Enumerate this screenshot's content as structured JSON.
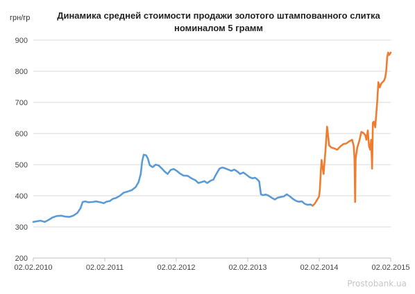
{
  "chart_data": {
    "type": "line",
    "title_line1": "Динамика средней стоимости продажи золотого штампованного слитка",
    "title_line2": "номиналом 5 грамм",
    "ylabel": "грн/гр",
    "xlabel": "",
    "ylim": [
      200,
      900
    ],
    "xlim": [
      "2010-02-02",
      "2015-02-02"
    ],
    "y_ticks": [
      200,
      300,
      400,
      500,
      600,
      700,
      800,
      900
    ],
    "x_tick_labels": [
      "02.02.2010",
      "02.02.2011",
      "02.02.2012",
      "02.02.2013",
      "02.02.2014",
      "02.02.2015"
    ],
    "grid": "horizontal",
    "legend": "none",
    "series": [
      {
        "color": "#5b9bd5",
        "points": [
          [
            "2010-02-02",
            316
          ],
          [
            "2010-02-20",
            318
          ],
          [
            "2010-03-10",
            320
          ],
          [
            "2010-04-01",
            316
          ],
          [
            "2010-04-20",
            322
          ],
          [
            "2010-05-10",
            330
          ],
          [
            "2010-06-01",
            335
          ],
          [
            "2010-06-25",
            336
          ],
          [
            "2010-07-15",
            333
          ],
          [
            "2010-08-05",
            332
          ],
          [
            "2010-08-25",
            336
          ],
          [
            "2010-09-15",
            345
          ],
          [
            "2010-10-01",
            360
          ],
          [
            "2010-10-12",
            380
          ],
          [
            "2010-10-25",
            382
          ],
          [
            "2010-11-10",
            379
          ],
          [
            "2010-12-01",
            380
          ],
          [
            "2010-12-20",
            382
          ],
          [
            "2011-01-10",
            379
          ],
          [
            "2011-01-28",
            376
          ],
          [
            "2011-02-10",
            381
          ],
          [
            "2011-02-28",
            383
          ],
          [
            "2011-03-15",
            390
          ],
          [
            "2011-04-01",
            393
          ],
          [
            "2011-04-20",
            400
          ],
          [
            "2011-05-10",
            410
          ],
          [
            "2011-06-01",
            414
          ],
          [
            "2011-06-20",
            418
          ],
          [
            "2011-07-10",
            428
          ],
          [
            "2011-07-25",
            444
          ],
          [
            "2011-08-05",
            470
          ],
          [
            "2011-08-12",
            510
          ],
          [
            "2011-08-20",
            532
          ],
          [
            "2011-09-01",
            530
          ],
          [
            "2011-09-10",
            520
          ],
          [
            "2011-09-20",
            498
          ],
          [
            "2011-10-05",
            492
          ],
          [
            "2011-10-20",
            500
          ],
          [
            "2011-11-05",
            497
          ],
          [
            "2011-11-20",
            488
          ],
          [
            "2011-12-05",
            478
          ],
          [
            "2011-12-20",
            470
          ],
          [
            "2012-01-05",
            483
          ],
          [
            "2012-01-20",
            486
          ],
          [
            "2012-02-05",
            480
          ],
          [
            "2012-02-20",
            472
          ],
          [
            "2012-03-10",
            465
          ],
          [
            "2012-04-01",
            464
          ],
          [
            "2012-04-20",
            456
          ],
          [
            "2012-05-10",
            450
          ],
          [
            "2012-05-25",
            441
          ],
          [
            "2012-06-10",
            444
          ],
          [
            "2012-06-25",
            447
          ],
          [
            "2012-07-10",
            441
          ],
          [
            "2012-07-25",
            448
          ],
          [
            "2012-08-10",
            452
          ],
          [
            "2012-08-25",
            470
          ],
          [
            "2012-09-10",
            487
          ],
          [
            "2012-09-25",
            491
          ],
          [
            "2012-10-10",
            488
          ],
          [
            "2012-10-25",
            484
          ],
          [
            "2012-11-10",
            480
          ],
          [
            "2012-11-25",
            484
          ],
          [
            "2012-12-10",
            478
          ],
          [
            "2012-12-25",
            470
          ],
          [
            "2013-01-10",
            475
          ],
          [
            "2013-01-25",
            468
          ],
          [
            "2013-02-10",
            460
          ],
          [
            "2013-02-25",
            456
          ],
          [
            "2013-03-10",
            458
          ],
          [
            "2013-03-20",
            454
          ],
          [
            "2013-04-01",
            446
          ],
          [
            "2013-04-10",
            405
          ],
          [
            "2013-04-20",
            402
          ],
          [
            "2013-05-05",
            404
          ],
          [
            "2013-05-20",
            400
          ],
          [
            "2013-06-05",
            393
          ],
          [
            "2013-06-20",
            388
          ],
          [
            "2013-07-05",
            394
          ],
          [
            "2013-07-20",
            396
          ],
          [
            "2013-08-05",
            398
          ],
          [
            "2013-08-20",
            405
          ],
          [
            "2013-09-05",
            398
          ],
          [
            "2013-09-20",
            390
          ],
          [
            "2013-10-05",
            384
          ],
          [
            "2013-10-20",
            381
          ],
          [
            "2013-11-05",
            382
          ],
          [
            "2013-11-20",
            374
          ],
          [
            "2013-12-05",
            371
          ],
          [
            "2013-12-20",
            372
          ],
          [
            "2013-12-30",
            368
          ]
        ]
      },
      {
        "color": "#ed7d31",
        "points": [
          [
            "2013-12-30",
            368
          ],
          [
            "2014-01-10",
            375
          ],
          [
            "2014-01-20",
            385
          ],
          [
            "2014-02-01",
            398
          ],
          [
            "2014-02-05",
            420
          ],
          [
            "2014-02-10",
            480
          ],
          [
            "2014-02-14",
            515
          ],
          [
            "2014-02-18",
            495
          ],
          [
            "2014-02-24",
            470
          ],
          [
            "2014-03-01",
            510
          ],
          [
            "2014-03-05",
            540
          ],
          [
            "2014-03-10",
            585
          ],
          [
            "2014-03-14",
            622
          ],
          [
            "2014-03-18",
            600
          ],
          [
            "2014-03-24",
            562
          ],
          [
            "2014-04-05",
            555
          ],
          [
            "2014-04-20",
            552
          ],
          [
            "2014-05-05",
            548
          ],
          [
            "2014-05-20",
            558
          ],
          [
            "2014-06-05",
            566
          ],
          [
            "2014-06-20",
            568
          ],
          [
            "2014-07-05",
            575
          ],
          [
            "2014-07-20",
            580
          ],
          [
            "2014-07-28",
            560
          ],
          [
            "2014-08-01",
            520
          ],
          [
            "2014-08-04",
            380
          ],
          [
            "2014-08-07",
            520
          ],
          [
            "2014-08-15",
            555
          ],
          [
            "2014-08-25",
            575
          ],
          [
            "2014-09-05",
            605
          ],
          [
            "2014-09-15",
            602
          ],
          [
            "2014-09-25",
            595
          ],
          [
            "2014-10-01",
            580
          ],
          [
            "2014-10-08",
            610
          ],
          [
            "2014-10-14",
            560
          ],
          [
            "2014-10-20",
            548
          ],
          [
            "2014-10-25",
            580
          ],
          [
            "2014-10-30",
            487
          ],
          [
            "2014-11-03",
            635
          ],
          [
            "2014-11-08",
            638
          ],
          [
            "2014-11-15",
            620
          ],
          [
            "2014-11-20",
            660
          ],
          [
            "2014-11-25",
            700
          ],
          [
            "2014-12-01",
            765
          ],
          [
            "2014-12-08",
            748
          ],
          [
            "2014-12-15",
            760
          ],
          [
            "2014-12-22",
            765
          ],
          [
            "2014-12-30",
            770
          ],
          [
            "2015-01-05",
            780
          ],
          [
            "2015-01-10",
            800
          ],
          [
            "2015-01-15",
            845
          ],
          [
            "2015-01-20",
            860
          ],
          [
            "2015-01-25",
            852
          ],
          [
            "2015-02-02",
            860
          ]
        ]
      }
    ]
  },
  "watermark": "Prostobank.ua"
}
